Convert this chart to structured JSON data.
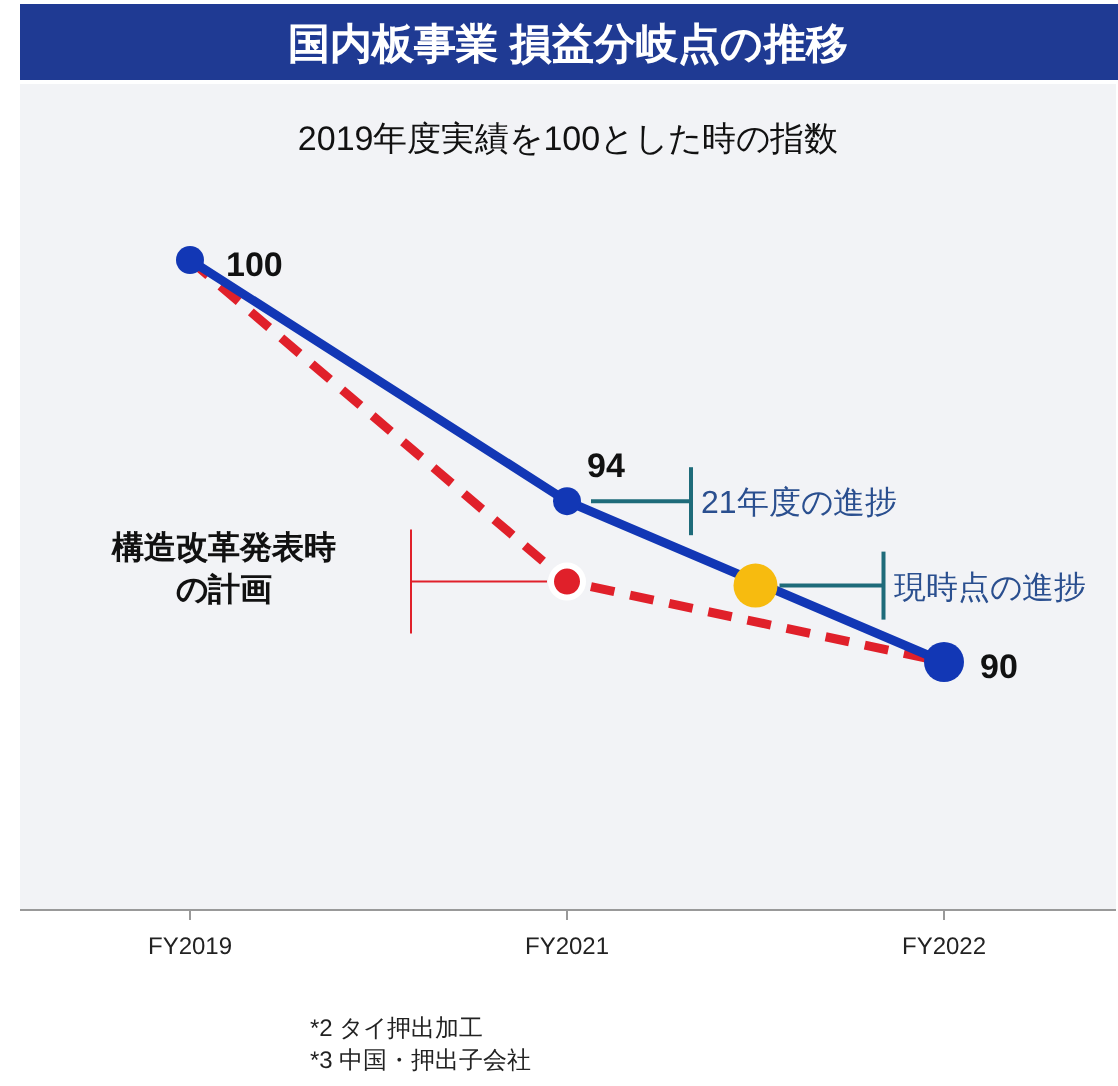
{
  "chart_data": {
    "type": "line",
    "title": "国内板事業 損益分岐点の推移",
    "subtitle": "2019年度実績を100とした時の指数",
    "categories": [
      "FY2019",
      null,
      "FY2021",
      null,
      "FY2022"
    ],
    "tick_labels": "x",
    "grid": false,
    "legend": false,
    "series": [
      {
        "type": "line",
        "color": "#e0202a",
        "line_style": "dashed",
        "marker": "none",
        "x": [
          "FY2019",
          "FY2021",
          "FY2022"
        ],
        "values": [
          100,
          92,
          90
        ]
      },
      {
        "type": "line",
        "color": "#1237b5",
        "line_style": "solid",
        "marker": "circle",
        "x": [
          "FY2019",
          "FY2021",
          "FY2022"
        ],
        "values": [
          100,
          94,
          90
        ],
        "value_labels": [
          "100",
          "94",
          "90"
        ]
      },
      {
        "type": "scatter",
        "color": "#e0202a",
        "marker": "circle",
        "x": [
          "FY2021"
        ],
        "values": [
          92
        ]
      },
      {
        "type": "scatter",
        "color": "#f7bb0f",
        "marker": "circle",
        "values": [
          null,
          null,
          null,
          91.9,
          null
        ]
      }
    ],
    "annotations": [
      "21年度の進捗",
      "現時点の進捗",
      "構造改革発表時の計画",
      "*2  タイ押出加工",
      "*3  中国・押出子会社"
    ]
  }
}
